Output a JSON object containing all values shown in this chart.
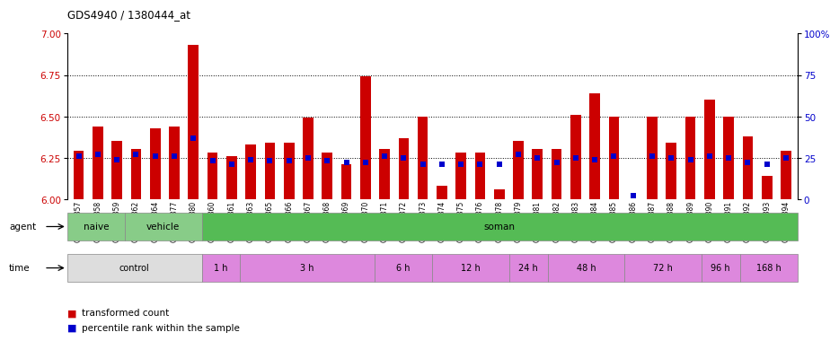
{
  "title": "GDS4940 / 1380444_at",
  "samples": [
    "GSM338857",
    "GSM338858",
    "GSM338859",
    "GSM338862",
    "GSM338864",
    "GSM338877",
    "GSM338880",
    "GSM338860",
    "GSM338861",
    "GSM338863",
    "GSM338865",
    "GSM338866",
    "GSM338867",
    "GSM338868",
    "GSM338869",
    "GSM338870",
    "GSM338871",
    "GSM338872",
    "GSM338873",
    "GSM338874",
    "GSM338875",
    "GSM338876",
    "GSM338878",
    "GSM338879",
    "GSM338881",
    "GSM338882",
    "GSM338883",
    "GSM338884",
    "GSM338885",
    "GSM338886",
    "GSM338887",
    "GSM338888",
    "GSM338889",
    "GSM338890",
    "GSM338891",
    "GSM338892",
    "GSM338893",
    "GSM338894"
  ],
  "red_values": [
    6.29,
    6.44,
    6.35,
    6.3,
    6.43,
    6.44,
    6.93,
    6.28,
    6.26,
    6.33,
    6.34,
    6.34,
    6.49,
    6.28,
    6.21,
    6.74,
    6.3,
    6.37,
    6.5,
    6.08,
    6.28,
    6.28,
    6.06,
    6.35,
    6.3,
    6.3,
    6.51,
    6.64,
    6.5,
    6.0,
    6.5,
    6.34,
    6.5,
    6.6,
    6.5,
    6.38,
    6.14,
    6.29
  ],
  "blue_values": [
    26,
    27,
    24,
    27,
    26,
    26,
    37,
    23,
    21,
    24,
    23,
    23,
    25,
    23,
    22,
    22,
    26,
    25,
    21,
    21,
    21,
    21,
    21,
    27,
    25,
    22,
    25,
    24,
    26,
    2,
    26,
    25,
    24,
    26,
    25,
    22,
    21,
    25
  ],
  "ylim_left": [
    6.0,
    7.0
  ],
  "ylim_right": [
    0,
    100
  ],
  "yticks_left": [
    6.0,
    6.25,
    6.5,
    6.75,
    7.0
  ],
  "yticks_right": [
    0,
    25,
    50,
    75,
    100
  ],
  "bar_color": "#cc0000",
  "point_color": "#0000cc",
  "agent_groups": [
    {
      "label": "naive",
      "start": 0,
      "end": 2,
      "color": "#88cc88"
    },
    {
      "label": "vehicle",
      "start": 3,
      "end": 6,
      "color": "#88cc88"
    },
    {
      "label": "soman",
      "start": 7,
      "end": 37,
      "color": "#55bb55"
    }
  ],
  "time_groups": [
    {
      "label": "control",
      "start": 0,
      "end": 6,
      "color": "#dddddd"
    },
    {
      "label": "1 h",
      "start": 7,
      "end": 8,
      "color": "#dd88dd"
    },
    {
      "label": "3 h",
      "start": 9,
      "end": 15,
      "color": "#dd88dd"
    },
    {
      "label": "6 h",
      "start": 16,
      "end": 18,
      "color": "#dd88dd"
    },
    {
      "label": "12 h",
      "start": 19,
      "end": 22,
      "color": "#dd88dd"
    },
    {
      "label": "24 h",
      "start": 23,
      "end": 24,
      "color": "#dd88dd"
    },
    {
      "label": "48 h",
      "start": 25,
      "end": 28,
      "color": "#dd88dd"
    },
    {
      "label": "72 h",
      "start": 29,
      "end": 32,
      "color": "#dd88dd"
    },
    {
      "label": "96 h",
      "start": 33,
      "end": 34,
      "color": "#dd88dd"
    },
    {
      "label": "168 h",
      "start": 35,
      "end": 37,
      "color": "#dd88dd"
    }
  ]
}
